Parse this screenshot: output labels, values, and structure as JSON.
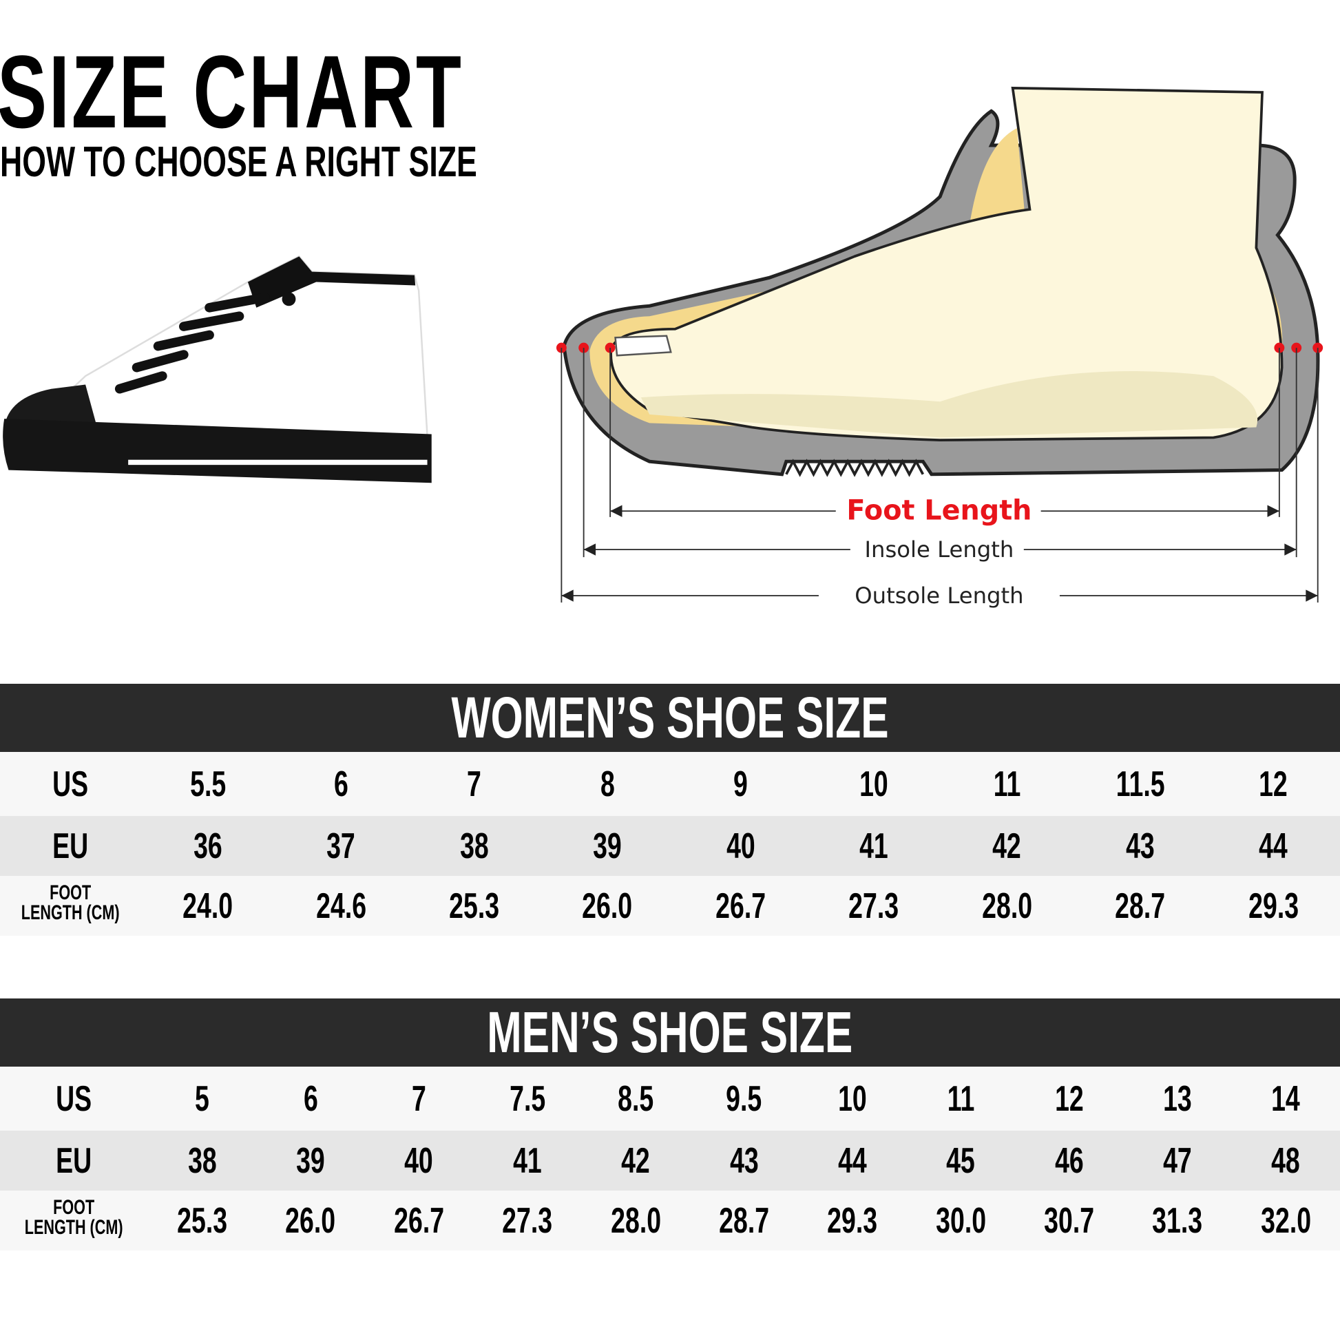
{
  "header": {
    "title": "SIZE CHART",
    "subtitle": "HOW TO CHOOSE A RIGHT SIZE"
  },
  "diagram": {
    "foot_length": "Foot Length",
    "insole_length": "Insole Length",
    "outsole_length": "Outsole Length",
    "accent": "#e8141b"
  },
  "women": {
    "title": "WOMEN’S SHOE SIZE",
    "labels": {
      "us": "US",
      "eu": "EU",
      "foot1": "FOOT",
      "foot2": "LENGTH (CM)"
    },
    "us": [
      "5.5",
      "6",
      "7",
      "8",
      "9",
      "10",
      "11",
      "11.5",
      "12"
    ],
    "eu": [
      "36",
      "37",
      "38",
      "39",
      "40",
      "41",
      "42",
      "43",
      "44"
    ],
    "cm": [
      "24.0",
      "24.6",
      "25.3",
      "26.0",
      "26.7",
      "27.3",
      "28.0",
      "28.7",
      "29.3"
    ]
  },
  "men": {
    "title": "MEN’S SHOE SIZE",
    "labels": {
      "us": "US",
      "eu": "EU",
      "foot1": "FOOT",
      "foot2": "LENGTH (CM)"
    },
    "us": [
      "5",
      "6",
      "7",
      "7.5",
      "8.5",
      "9.5",
      "10",
      "11",
      "12",
      "13",
      "14"
    ],
    "eu": [
      "38",
      "39",
      "40",
      "41",
      "42",
      "43",
      "44",
      "45",
      "46",
      "47",
      "48"
    ],
    "cm": [
      "25.3",
      "26.0",
      "26.7",
      "27.3",
      "28.0",
      "28.7",
      "29.3",
      "30.0",
      "30.7",
      "31.3",
      "32.0"
    ]
  }
}
